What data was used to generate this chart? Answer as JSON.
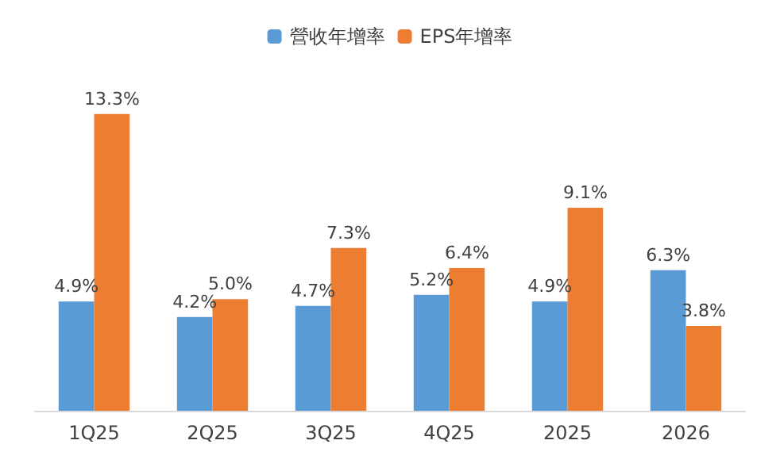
{
  "chart_data": {
    "type": "bar",
    "categories": [
      "1Q25",
      "2Q25",
      "3Q25",
      "4Q25",
      "2025",
      "2026"
    ],
    "series": [
      {
        "name": "營收年增率",
        "color": "#5b9bd5",
        "values": [
          4.9,
          4.2,
          4.7,
          5.2,
          4.9,
          6.3
        ],
        "value_labels": [
          "4.9%",
          "4.2%",
          "4.7%",
          "5.2%",
          "4.9%",
          "6.3%"
        ]
      },
      {
        "name": "EPS年增率",
        "color": "#ed7d31",
        "values": [
          13.3,
          5.0,
          7.3,
          6.4,
          9.1,
          3.8
        ],
        "value_labels": [
          "13.3%",
          "5.0%",
          "7.3%",
          "6.4%",
          "9.1%",
          "3.8%"
        ]
      }
    ],
    "legend": "top",
    "tick_labels": "x"
  }
}
